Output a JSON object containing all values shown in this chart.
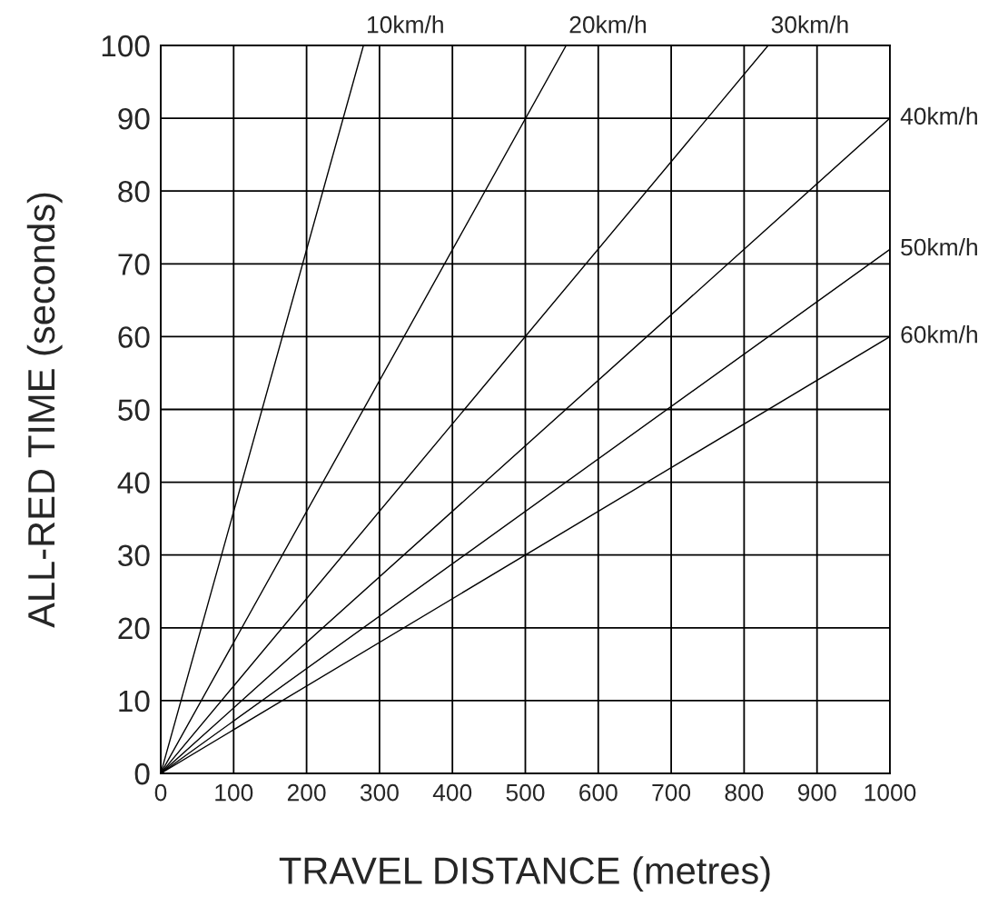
{
  "chart_data": {
    "type": "line",
    "xlabel": "TRAVEL DISTANCE (metres)",
    "ylabel": "ALL-RED TIME (seconds)",
    "xlim": [
      0,
      1000
    ],
    "ylim": [
      0,
      100
    ],
    "xticks": [
      0,
      100,
      200,
      300,
      400,
      500,
      600,
      700,
      800,
      900,
      1000
    ],
    "yticks": [
      0,
      10,
      20,
      30,
      40,
      50,
      60,
      70,
      80,
      90,
      100
    ],
    "grid": true,
    "legend": false,
    "marker": "none",
    "line_style": "solid",
    "series": [
      {
        "name": "10km/h",
        "color": "#000000",
        "x": [
          0,
          278
        ],
        "values": [
          0,
          100
        ]
      },
      {
        "name": "20km/h",
        "color": "#000000",
        "x": [
          0,
          556
        ],
        "values": [
          0,
          100
        ]
      },
      {
        "name": "30km/h",
        "color": "#000000",
        "x": [
          0,
          833
        ],
        "values": [
          0,
          100
        ]
      },
      {
        "name": "40km/h",
        "color": "#000000",
        "x": [
          0,
          1000
        ],
        "values": [
          0,
          90
        ]
      },
      {
        "name": "50km/h",
        "color": "#000000",
        "x": [
          0,
          1000
        ],
        "values": [
          0,
          72
        ]
      },
      {
        "name": "60km/h",
        "color": "#000000",
        "x": [
          0,
          1000
        ],
        "values": [
          0,
          60
        ]
      }
    ]
  }
}
